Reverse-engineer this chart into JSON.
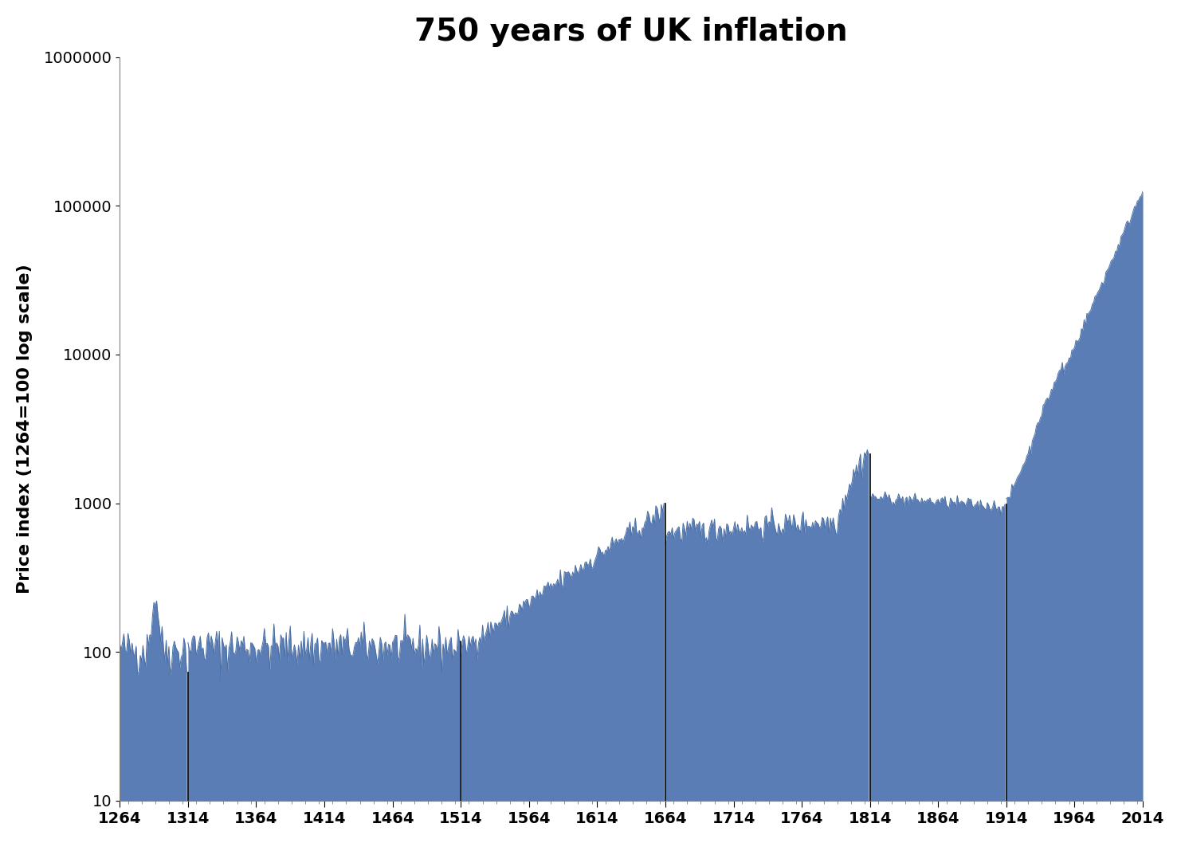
{
  "title": "750 years of UK inflation",
  "ylabel": "Price index (1264=100 log scale)",
  "xlim": [
    1264,
    2014
  ],
  "ylim": [
    10,
    1000000
  ],
  "fill_color": "#5b7db5",
  "line_color": "#4a6fa5",
  "background_color": "#ffffff",
  "title_fontsize": 28,
  "label_fontsize": 16,
  "tick_fontsize": 14,
  "xticks": [
    1264,
    1314,
    1364,
    1414,
    1464,
    1514,
    1564,
    1614,
    1664,
    1714,
    1764,
    1814,
    1864,
    1914,
    1964,
    2014
  ],
  "yticks": [
    10,
    100,
    1000,
    10000,
    100000,
    1000000
  ],
  "segment_breaks": [
    1314,
    1514,
    1664,
    1814,
    1914
  ]
}
